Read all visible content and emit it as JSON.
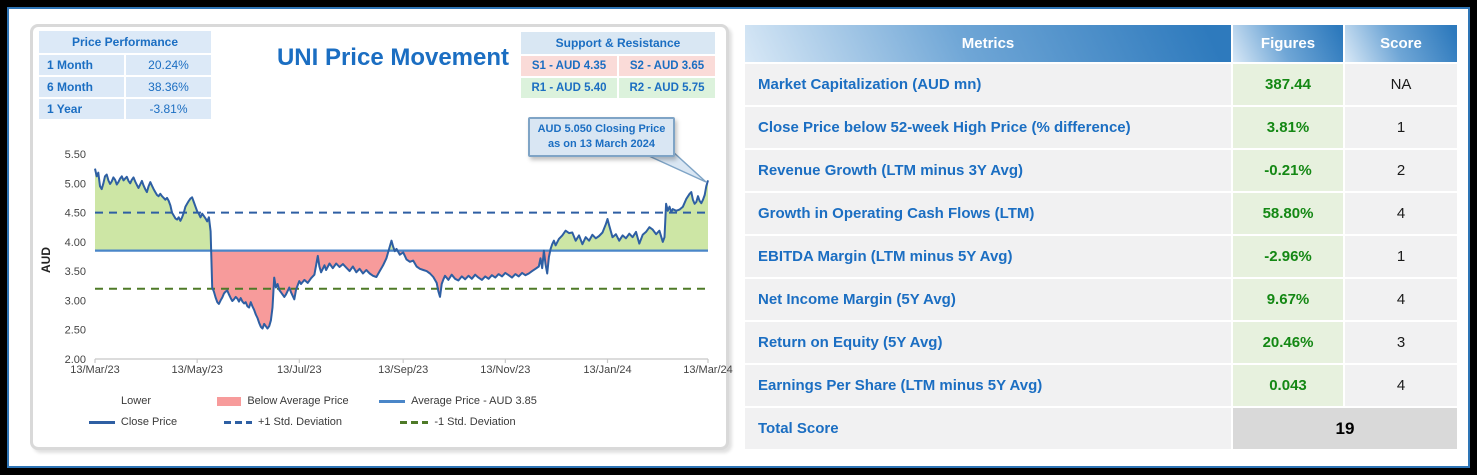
{
  "left_panel": {
    "title": "UNI Price Movement",
    "price_performance": {
      "header": "Price Performance",
      "rows": [
        {
          "label": "1 Month",
          "value": "20.24%"
        },
        {
          "label": "6 Month",
          "value": "38.36%"
        },
        {
          "label": "1 Year",
          "value": "-3.81%"
        }
      ]
    },
    "support_resistance": {
      "header": "Support & Resistance",
      "cells": [
        {
          "label": "S1 - AUD 4.35",
          "type": "support"
        },
        {
          "label": "S2 - AUD 3.65",
          "type": "support"
        },
        {
          "label": "R1 - AUD 5.40",
          "type": "resistance"
        },
        {
          "label": "R2 - AUD 5.75",
          "type": "resistance"
        }
      ]
    },
    "callout": {
      "line1": "AUD 5.050 Closing Price",
      "line2": "as on 13 March 2024"
    },
    "legend": [
      {
        "label": "Lower",
        "marker": "none"
      },
      {
        "label": "Below Average Price",
        "marker": "rect"
      },
      {
        "label": "Average Price - AUD 3.85",
        "marker": "line-avg"
      },
      {
        "label": "Close Price",
        "marker": "line-close"
      },
      {
        "label": "+1 Std. Deviation",
        "marker": "dash-blue"
      },
      {
        "label": "-1 Std. Deviation",
        "marker": "dash-green"
      }
    ]
  },
  "chart_data": {
    "type": "area",
    "title": "UNI Price Movement",
    "ylabel": "AUD",
    "ylim": [
      2.0,
      5.5
    ],
    "ytick_step": 0.5,
    "x_tick_labels": [
      "13/Mar/23",
      "13/May/23",
      "13/Jul/23",
      "13/Sep/23",
      "13/Nov/23",
      "13/Jan/24",
      "13/Mar/24"
    ],
    "x_tick_days": [
      0,
      61,
      122,
      184,
      245,
      306,
      366
    ],
    "x_domain_days": [
      0,
      366
    ],
    "average_price": 3.85,
    "plus_1_std": 4.5,
    "minus_1_std": 3.2,
    "closing_price": "5.050",
    "closing_date": "13 March 2024",
    "annotation": "AUD 5.050 Closing Price as on 13 March 2024",
    "grid": false,
    "legend_position": "bottom",
    "colors": {
      "close_line": "#2E5FA3",
      "avg_line": "#4A86C8",
      "plus_std": "#2E5FA3",
      "minus_std": "#4E7A27",
      "area_above": "#CDE6A5",
      "area_below": "#F79B9B",
      "axis": "#C8C8C8",
      "tick_text": "#444444"
    },
    "series": [
      {
        "name": "Close Price",
        "points": [
          [
            0,
            5.25
          ],
          [
            1,
            5.12
          ],
          [
            2,
            5.18
          ],
          [
            3,
            4.95
          ],
          [
            4,
            4.9
          ],
          [
            5,
            5.0
          ],
          [
            6,
            5.12
          ],
          [
            7,
            5.15
          ],
          [
            8,
            5.05
          ],
          [
            9,
            4.99
          ],
          [
            10,
            5.03
          ],
          [
            11,
            5.1
          ],
          [
            12,
            5.06
          ],
          [
            13,
            4.98
          ],
          [
            14,
            5.02
          ],
          [
            15,
            5.08
          ],
          [
            16,
            5.12
          ],
          [
            17,
            5.05
          ],
          [
            18,
            5.08
          ],
          [
            19,
            5.11
          ],
          [
            20,
            5.04
          ],
          [
            21,
            5.0
          ],
          [
            22,
            5.06
          ],
          [
            23,
            5.1
          ],
          [
            24,
            5.03
          ],
          [
            25,
            4.97
          ],
          [
            26,
            4.92
          ],
          [
            27,
            4.98
          ],
          [
            28,
            5.04
          ],
          [
            29,
            4.96
          ],
          [
            30,
            4.9
          ],
          [
            31,
            4.85
          ],
          [
            32,
            4.95
          ],
          [
            33,
            5.02
          ],
          [
            34,
            4.96
          ],
          [
            35,
            4.9
          ],
          [
            36,
            4.85
          ],
          [
            37,
            4.8
          ],
          [
            38,
            4.78
          ],
          [
            39,
            4.82
          ],
          [
            40,
            4.78
          ],
          [
            41,
            4.75
          ],
          [
            42,
            4.72
          ],
          [
            43,
            4.75
          ],
          [
            44,
            4.7
          ],
          [
            45,
            4.62
          ],
          [
            46,
            4.5
          ],
          [
            47,
            4.45
          ],
          [
            48,
            4.4
          ],
          [
            49,
            4.38
          ],
          [
            50,
            4.42
          ],
          [
            51,
            4.36
          ],
          [
            52,
            4.42
          ],
          [
            53,
            4.5
          ],
          [
            54,
            4.6
          ],
          [
            55,
            4.65
          ],
          [
            56,
            4.7
          ],
          [
            57,
            4.74
          ],
          [
            58,
            4.76
          ],
          [
            59,
            4.68
          ],
          [
            60,
            4.6
          ],
          [
            61,
            4.52
          ],
          [
            62,
            4.48
          ],
          [
            63,
            4.42
          ],
          [
            64,
            4.48
          ],
          [
            65,
            4.44
          ],
          [
            66,
            4.4
          ],
          [
            67,
            4.35
          ],
          [
            68,
            4.42
          ],
          [
            69,
            4.18
          ],
          [
            70,
            3.22
          ],
          [
            71,
            3.15
          ],
          [
            72,
            3.05
          ],
          [
            73,
            2.97
          ],
          [
            74,
            2.94
          ],
          [
            75,
            3.0
          ],
          [
            76,
            3.05
          ],
          [
            77,
            3.12
          ],
          [
            78,
            3.15
          ],
          [
            79,
            3.17
          ],
          [
            80,
            3.1
          ],
          [
            81,
            3.04
          ],
          [
            82,
            2.99
          ],
          [
            83,
            3.02
          ],
          [
            84,
            3.06
          ],
          [
            85,
            3.03
          ],
          [
            86,
            2.98
          ],
          [
            87,
            3.04
          ],
          [
            88,
            2.98
          ],
          [
            89,
            2.95
          ],
          [
            90,
            2.97
          ],
          [
            91,
            2.9
          ],
          [
            92,
            2.88
          ],
          [
            93,
            2.97
          ],
          [
            94,
            2.9
          ],
          [
            95,
            2.84
          ],
          [
            96,
            2.76
          ],
          [
            97,
            2.7
          ],
          [
            98,
            2.62
          ],
          [
            99,
            2.55
          ],
          [
            100,
            2.52
          ],
          [
            101,
            2.6
          ],
          [
            102,
            2.56
          ],
          [
            103,
            2.52
          ],
          [
            104,
            2.56
          ],
          [
            105,
            2.66
          ],
          [
            106,
            2.88
          ],
          [
            107,
            3.39
          ],
          [
            108,
            3.22
          ],
          [
            109,
            3.28
          ],
          [
            110,
            3.18
          ],
          [
            111,
            3.14
          ],
          [
            112,
            3.1
          ],
          [
            113,
            3.06
          ],
          [
            114,
            3.1
          ],
          [
            115,
            3.16
          ],
          [
            116,
            3.22
          ],
          [
            117,
            3.14
          ],
          [
            118,
            3.08
          ],
          [
            119,
            3.02
          ],
          [
            120,
            3.18
          ],
          [
            121,
            3.26
          ],
          [
            122,
            3.33
          ],
          [
            123,
            3.28
          ],
          [
            125,
            3.35
          ],
          [
            127,
            3.3
          ],
          [
            129,
            3.38
          ],
          [
            131,
            3.44
          ],
          [
            133,
            3.76
          ],
          [
            134,
            3.58
          ],
          [
            135,
            3.48
          ],
          [
            136,
            3.54
          ],
          [
            137,
            3.6
          ],
          [
            138,
            3.52
          ],
          [
            140,
            3.63
          ],
          [
            142,
            3.55
          ],
          [
            144,
            3.63
          ],
          [
            146,
            3.57
          ],
          [
            148,
            3.62
          ],
          [
            150,
            3.56
          ],
          [
            152,
            3.5
          ],
          [
            154,
            3.58
          ],
          [
            156,
            3.48
          ],
          [
            158,
            3.54
          ],
          [
            160,
            3.46
          ],
          [
            162,
            3.52
          ],
          [
            164,
            3.46
          ],
          [
            166,
            3.42
          ],
          [
            168,
            3.4
          ],
          [
            170,
            3.5
          ],
          [
            172,
            3.6
          ],
          [
            174,
            3.72
          ],
          [
            176,
            3.92
          ],
          [
            177,
            4.02
          ],
          [
            178,
            3.92
          ],
          [
            179,
            3.84
          ],
          [
            180,
            3.88
          ],
          [
            182,
            3.78
          ],
          [
            184,
            3.82
          ],
          [
            186,
            3.7
          ],
          [
            188,
            3.66
          ],
          [
            190,
            3.68
          ],
          [
            192,
            3.58
          ],
          [
            194,
            3.54
          ],
          [
            196,
            3.52
          ],
          [
            198,
            3.5
          ],
          [
            200,
            3.46
          ],
          [
            202,
            3.4
          ],
          [
            204,
            3.3
          ],
          [
            205,
            3.16
          ],
          [
            206,
            3.06
          ],
          [
            207,
            3.28
          ],
          [
            208,
            3.36
          ],
          [
            209,
            3.42
          ],
          [
            211,
            3.35
          ],
          [
            213,
            3.44
          ],
          [
            215,
            3.37
          ],
          [
            217,
            3.34
          ],
          [
            219,
            3.41
          ],
          [
            221,
            3.36
          ],
          [
            223,
            3.42
          ],
          [
            225,
            3.37
          ],
          [
            227,
            3.44
          ],
          [
            229,
            3.39
          ],
          [
            231,
            3.35
          ],
          [
            233,
            3.41
          ],
          [
            235,
            3.37
          ],
          [
            237,
            3.43
          ],
          [
            239,
            3.39
          ],
          [
            241,
            3.45
          ],
          [
            243,
            3.41
          ],
          [
            245,
            3.47
          ],
          [
            247,
            3.43
          ],
          [
            249,
            3.39
          ],
          [
            251,
            3.45
          ],
          [
            253,
            3.41
          ],
          [
            255,
            3.47
          ],
          [
            257,
            3.43
          ],
          [
            259,
            3.46
          ],
          [
            261,
            3.5
          ],
          [
            263,
            3.54
          ],
          [
            265,
            3.58
          ],
          [
            266,
            3.72
          ],
          [
            267,
            3.55
          ],
          [
            268,
            3.85
          ],
          [
            269,
            3.62
          ],
          [
            270,
            3.46
          ],
          [
            271,
            3.74
          ],
          [
            272,
            3.88
          ],
          [
            273,
            3.96
          ],
          [
            274,
            4.02
          ],
          [
            275,
            3.94
          ],
          [
            277,
            4.05
          ],
          [
            279,
            4.11
          ],
          [
            281,
            4.19
          ],
          [
            283,
            4.15
          ],
          [
            285,
            4.16
          ],
          [
            287,
            4.02
          ],
          [
            289,
            4.11
          ],
          [
            291,
            3.96
          ],
          [
            293,
            4.08
          ],
          [
            295,
            4.02
          ],
          [
            297,
            4.12
          ],
          [
            299,
            4.06
          ],
          [
            301,
            4.1
          ],
          [
            303,
            4.16
          ],
          [
            305,
            4.3
          ],
          [
            306,
            4.39
          ],
          [
            307,
            4.28
          ],
          [
            309,
            4.08
          ],
          [
            311,
            4.13
          ],
          [
            313,
            4.02
          ],
          [
            315,
            4.11
          ],
          [
            317,
            4.06
          ],
          [
            319,
            4.14
          ],
          [
            321,
            4.08
          ],
          [
            323,
            4.17
          ],
          [
            325,
            3.97
          ],
          [
            327,
            4.12
          ],
          [
            329,
            4.17
          ],
          [
            331,
            4.25
          ],
          [
            333,
            4.21
          ],
          [
            335,
            4.13
          ],
          [
            337,
            4.19
          ],
          [
            339,
            4.0
          ],
          [
            340,
            4.08
          ],
          [
            341,
            4.65
          ],
          [
            342,
            4.53
          ],
          [
            343,
            4.6
          ],
          [
            344,
            4.51
          ],
          [
            345,
            4.56
          ],
          [
            347,
            4.53
          ],
          [
            349,
            4.55
          ],
          [
            351,
            4.6
          ],
          [
            353,
            4.73
          ],
          [
            355,
            4.82
          ],
          [
            356,
            4.85
          ],
          [
            357,
            4.72
          ],
          [
            358,
            4.65
          ],
          [
            359,
            4.68
          ],
          [
            360,
            4.78
          ],
          [
            361,
            4.7
          ],
          [
            362,
            4.66
          ],
          [
            363,
            4.72
          ],
          [
            364,
            4.8
          ],
          [
            365,
            4.95
          ],
          [
            366,
            5.05
          ]
        ]
      }
    ]
  },
  "table": {
    "headers": [
      "Metrics",
      "Figures",
      "Score"
    ],
    "rows": [
      {
        "metric": "Market Capitalization (AUD mn)",
        "figure": "387.44",
        "score": "NA"
      },
      {
        "metric": "Close Price below 52-week High Price (% difference)",
        "figure": "3.81%",
        "score": "1"
      },
      {
        "metric": "Revenue Growth (LTM minus 3Y Avg)",
        "figure": "-0.21%",
        "score": "2"
      },
      {
        "metric": "Growth in Operating Cash Flows (LTM)",
        "figure": "58.80%",
        "score": "4"
      },
      {
        "metric": "EBITDA Margin (LTM minus 5Y Avg)",
        "figure": "-2.96%",
        "score": "1"
      },
      {
        "metric": "Net Income Margin (5Y Avg)",
        "figure": "9.67%",
        "score": "4"
      },
      {
        "metric": "Return on Equity (5Y Avg)",
        "figure": "20.46%",
        "score": "3"
      },
      {
        "metric": "Earnings Per Share (LTM minus 5Y Avg)",
        "figure": "0.043",
        "score": "4"
      }
    ],
    "total": {
      "label": "Total Score",
      "value": "19"
    }
  },
  "colors": {
    "accent_blue": "#1B6EC2",
    "frame_border": "#2E75B6",
    "panel_border": "#D9D9D9",
    "light_blue_bg": "#DCE9F7",
    "support_bg": "#FADBD8",
    "resistance_bg": "#DCF2DC",
    "figures_bg": "#E7F1DE",
    "figures_text": "#148814",
    "row_bg": "#F1F1F2",
    "total_bg": "#D9D9D9",
    "callout_bg": "#D9E6F3",
    "callout_border": "#7FA4C6"
  }
}
